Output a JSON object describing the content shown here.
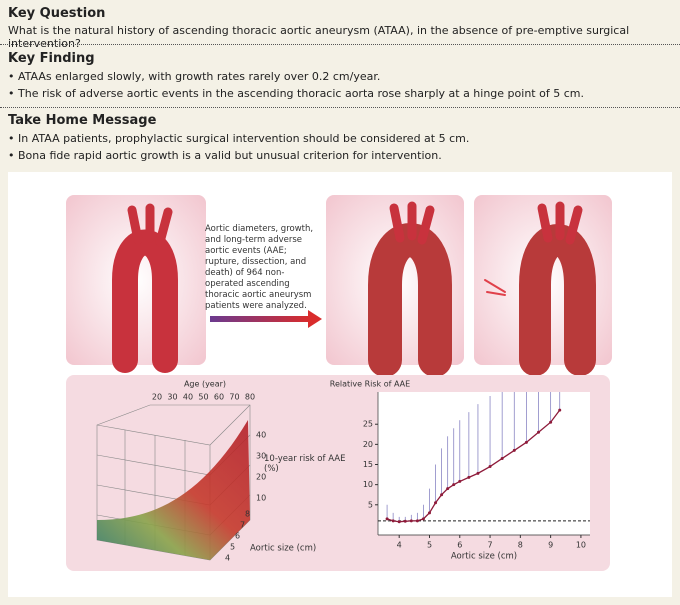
{
  "key_question": {
    "heading": "Key Question",
    "text": "What is the natural history of ascending thoracic aortic aneurysm (ATAA), in the absence of pre-emptive surgical intervention?"
  },
  "key_finding": {
    "heading": "Key Finding",
    "bullets": [
      "ATAAs enlarged slowly, with growth rates rarely over 0.2 cm/year.",
      "The risk of adverse aortic events in the ascending thoracic aorta rose sharply at a hinge point of 5 cm."
    ]
  },
  "take_home": {
    "heading": "Take Home Message",
    "bullets": [
      "In ATAA patients, prophylactic surgical intervention should be considered at 5 cm.",
      "Bona fide rapid aortic growth is a valid but unusual criterion for intervention."
    ]
  },
  "figure": {
    "description": "Aortic diameters, growth, and long-term adverse aortic events (AAE; rupture, dissection, and death) of 964 non-operated ascending thoracic aortic aneurysm patients were analyzed.",
    "surface_chart": {
      "age_label": "Age (year)",
      "age_ticks": [
        20,
        30,
        40,
        50,
        60,
        70,
        80
      ],
      "risk_label": "10-year risk of AAE (%)",
      "risk_ticks": [
        40,
        30,
        20,
        10
      ],
      "size_label": "Aortic size (cm)",
      "size_ticks": [
        8,
        7,
        6,
        5,
        4
      ]
    },
    "risk_chart": {
      "type": "line",
      "title": "Relative Risk of AAE",
      "x_label": "Aortic size (cm)",
      "x": [
        3.6,
        3.8,
        4.0,
        4.2,
        4.4,
        4.6,
        4.8,
        5.0,
        5.2,
        5.4,
        5.6,
        5.8,
        6.0,
        6.3,
        6.6,
        7.0,
        7.4,
        7.8,
        8.2,
        8.6,
        9.0,
        9.3
      ],
      "values": [
        1.5,
        1.0,
        0.8,
        0.9,
        1.0,
        1.0,
        1.5,
        3.0,
        5.5,
        7.5,
        9.0,
        10.0,
        10.8,
        11.8,
        12.8,
        14.5,
        16.5,
        18.5,
        20.5,
        23.0,
        25.5,
        28.5
      ],
      "upper": [
        5.0,
        3.0,
        2.0,
        2.0,
        2.5,
        3.0,
        5.0,
        9.0,
        15.0,
        19.0,
        22.0,
        24.0,
        26.0,
        28.0,
        30.0,
        32.0,
        33.0,
        33.0,
        33.0,
        33.0,
        33.0,
        33.0
      ],
      "reference": 1,
      "xlim": [
        3.3,
        10.3
      ],
      "ylim": [
        -2.5,
        33
      ],
      "xticks": [
        4,
        5,
        6,
        7,
        8,
        9,
        10
      ],
      "yticks": [
        5,
        10,
        15,
        20,
        25
      ],
      "color": "#8e1b3a",
      "bar_color": "#8a86c4"
    }
  }
}
